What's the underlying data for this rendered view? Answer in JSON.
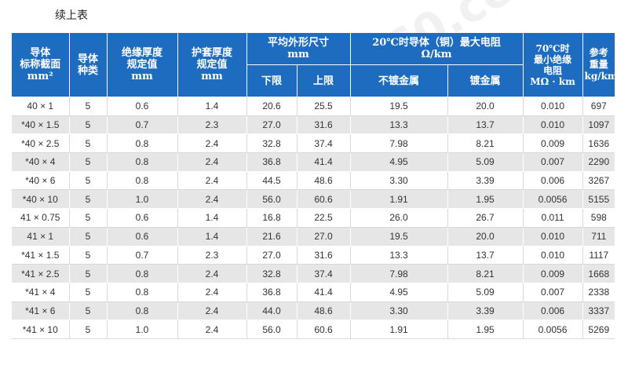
{
  "caption": "续上表",
  "watermark": "www.zkh360.com",
  "headers": {
    "section": "导体\n标称截面\nmm²",
    "type": "导体\n种类",
    "insulation": "绝缘厚度\n规定值\nmm",
    "sheath": "护套厚度\n规定值\nmm",
    "outer_dim": "平均外形尺寸\nmm",
    "outer_lower": "下限",
    "outer_upper": "上限",
    "resistance": "20℃时导体（铜）最大电阻\nΩ/km",
    "res_plain": "不镀金属",
    "res_plated": "镀金属",
    "insul_res": "70℃时\n最小绝缘\n电阻\nMΩ · km",
    "weight": "参考\n重量\nkg/km"
  },
  "rows": [
    {
      "section": "40 × 1",
      "type": "5",
      "insulation": "0.6",
      "sheath": "1.4",
      "lower": "20.6",
      "upper": "25.5",
      "res_plain": "19.5",
      "res_plated": "20.0",
      "insul_res": "0.010",
      "weight": "697"
    },
    {
      "section": "*40 × 1.5",
      "type": "5",
      "insulation": "0.7",
      "sheath": "2.3",
      "lower": "27.0",
      "upper": "31.6",
      "res_plain": "13.3",
      "res_plated": "13.7",
      "insul_res": "0.010",
      "weight": "1097"
    },
    {
      "section": "*40 × 2.5",
      "type": "5",
      "insulation": "0.8",
      "sheath": "2.4",
      "lower": "32.8",
      "upper": "37.4",
      "res_plain": "7.98",
      "res_plated": "8.21",
      "insul_res": "0.009",
      "weight": "1636"
    },
    {
      "section": "*40 × 4",
      "type": "5",
      "insulation": "0.8",
      "sheath": "2.4",
      "lower": "36.8",
      "upper": "41.4",
      "res_plain": "4.95",
      "res_plated": "5.09",
      "insul_res": "0.007",
      "weight": "2290"
    },
    {
      "section": "*40 × 6",
      "type": "5",
      "insulation": "0.8",
      "sheath": "2.4",
      "lower": "44.5",
      "upper": "48.6",
      "res_plain": "3.30",
      "res_plated": "3.39",
      "insul_res": "0.006",
      "weight": "3267"
    },
    {
      "section": "*40 × 10",
      "type": "5",
      "insulation": "1.0",
      "sheath": "2.4",
      "lower": "56.0",
      "upper": "60.6",
      "res_plain": "1.91",
      "res_plated": "1.95",
      "insul_res": "0.0056",
      "weight": "5155"
    },
    {
      "section": "41 × 0.75",
      "type": "5",
      "insulation": "0.6",
      "sheath": "1.4",
      "lower": "16.8",
      "upper": "22.5",
      "res_plain": "26.0",
      "res_plated": "26.7",
      "insul_res": "0.011",
      "weight": "598"
    },
    {
      "section": "41 × 1",
      "type": "5",
      "insulation": "0.6",
      "sheath": "1.4",
      "lower": "21.6",
      "upper": "27.0",
      "res_plain": "19.5",
      "res_plated": "20.0",
      "insul_res": "0.010",
      "weight": "711"
    },
    {
      "section": "*41 × 1.5",
      "type": "5",
      "insulation": "0.7",
      "sheath": "2.3",
      "lower": "27.0",
      "upper": "31.6",
      "res_plain": "13.3",
      "res_plated": "13.7",
      "insul_res": "0.010",
      "weight": "1117"
    },
    {
      "section": "*41 × 2.5",
      "type": "5",
      "insulation": "0.8",
      "sheath": "2.4",
      "lower": "32.8",
      "upper": "37.4",
      "res_plain": "7.98",
      "res_plated": "8.21",
      "insul_res": "0.009",
      "weight": "1668"
    },
    {
      "section": "*41 × 4",
      "type": "5",
      "insulation": "0.8",
      "sheath": "2.4",
      "lower": "36.8",
      "upper": "41.4",
      "res_plain": "4.95",
      "res_plated": "5.09",
      "insul_res": "0.007",
      "weight": "2338"
    },
    {
      "section": "*41 × 6",
      "type": "5",
      "insulation": "0.8",
      "sheath": "2.4",
      "lower": "44.0",
      "upper": "48.6",
      "res_plain": "3.30",
      "res_plated": "3.39",
      "insul_res": "0.006",
      "weight": "3337"
    },
    {
      "section": "*41 × 10",
      "type": "5",
      "insulation": "1.0",
      "sheath": "2.4",
      "lower": "56.0",
      "upper": "60.6",
      "res_plain": "1.91",
      "res_plated": "1.95",
      "insul_res": "0.0056",
      "weight": "5269"
    }
  ]
}
